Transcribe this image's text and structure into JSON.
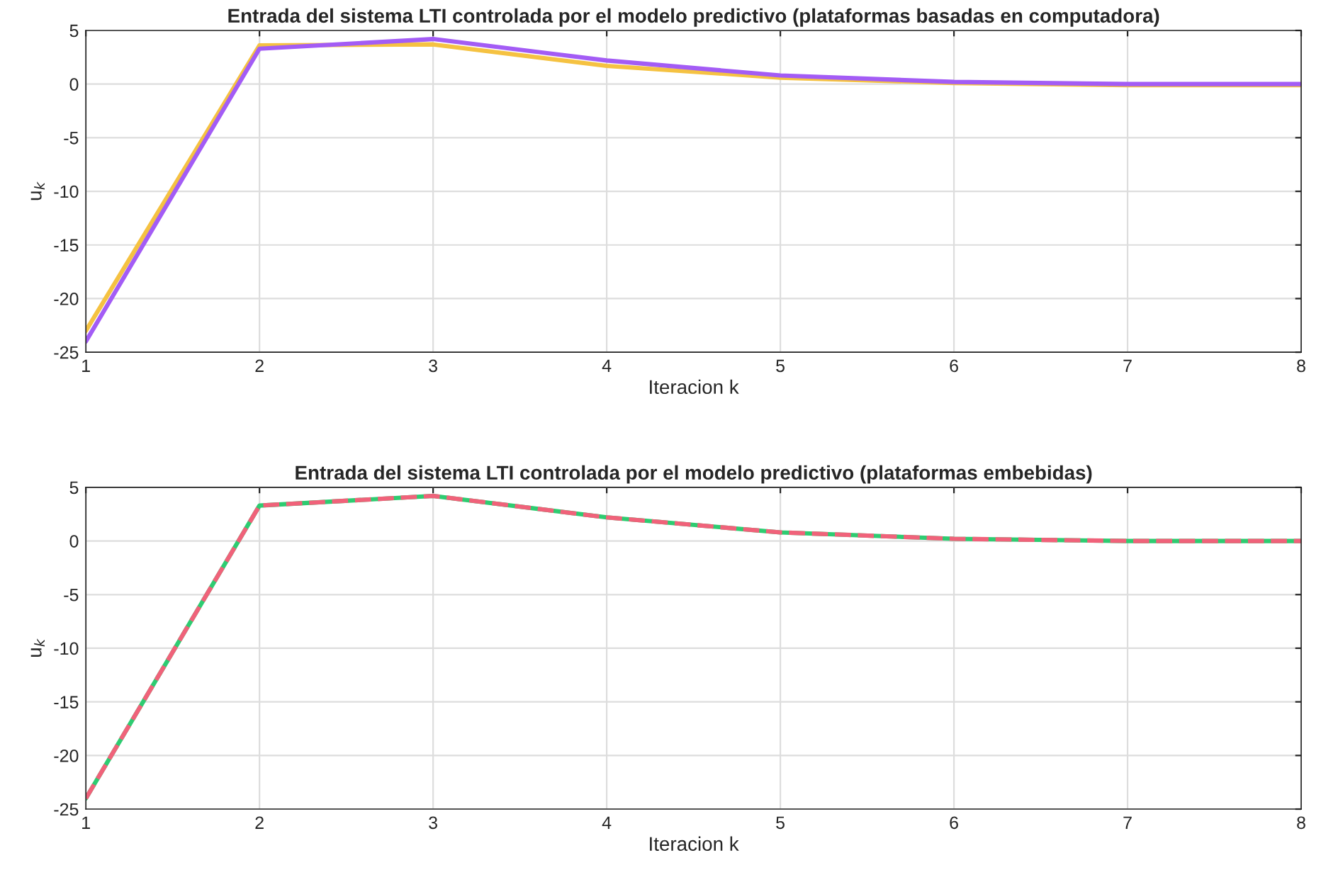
{
  "chart_data": [
    {
      "type": "line",
      "title": "Entrada del sistema LTI controlada por el modelo predictivo (plataformas basadas en computadora)",
      "xlabel": "Iteracion k",
      "ylabel": "u$_{k}$",
      "x": [
        1,
        2,
        3,
        4,
        5,
        6,
        7,
        8
      ],
      "xlim": [
        1,
        8
      ],
      "xticks": [
        1,
        2,
        3,
        4,
        5,
        6,
        7,
        8
      ],
      "ylim": [
        -25,
        5
      ],
      "yticks": [
        -25,
        -20,
        -15,
        -10,
        -5,
        0,
        5
      ],
      "grid": true,
      "series": [
        {
          "color": "#f5c242",
          "values": [
            -23,
            3.6,
            3.7,
            1.7,
            0.6,
            0.1,
            -0.1,
            -0.1
          ]
        },
        {
          "color": "#a35cf5",
          "values": [
            -24,
            3.3,
            4.2,
            2.2,
            0.8,
            0.2,
            0,
            0
          ]
        }
      ]
    },
    {
      "type": "line",
      "title": "Entrada del sistema LTI controlada por el modelo predictivo (plataformas embebidas)",
      "xlabel": "Iteracion k",
      "ylabel": "u$_{k}$",
      "x": [
        1,
        2,
        3,
        4,
        5,
        6,
        7,
        8
      ],
      "xlim": [
        1,
        8
      ],
      "xticks": [
        1,
        2,
        3,
        4,
        5,
        6,
        7,
        8
      ],
      "ylim": [
        -25,
        5
      ],
      "yticks": [
        -25,
        -20,
        -15,
        -10,
        -5,
        0,
        5
      ],
      "grid": true,
      "series": [
        {
          "color": "#2ecc71",
          "values": [
            -24,
            3.3,
            4.2,
            2.2,
            0.8,
            0.2,
            0,
            0
          ]
        },
        {
          "color": "#f0627a",
          "line_style": "dashed",
          "values": [
            -24,
            3.3,
            4.2,
            2.2,
            0.8,
            0.2,
            0,
            0
          ]
        }
      ]
    }
  ]
}
